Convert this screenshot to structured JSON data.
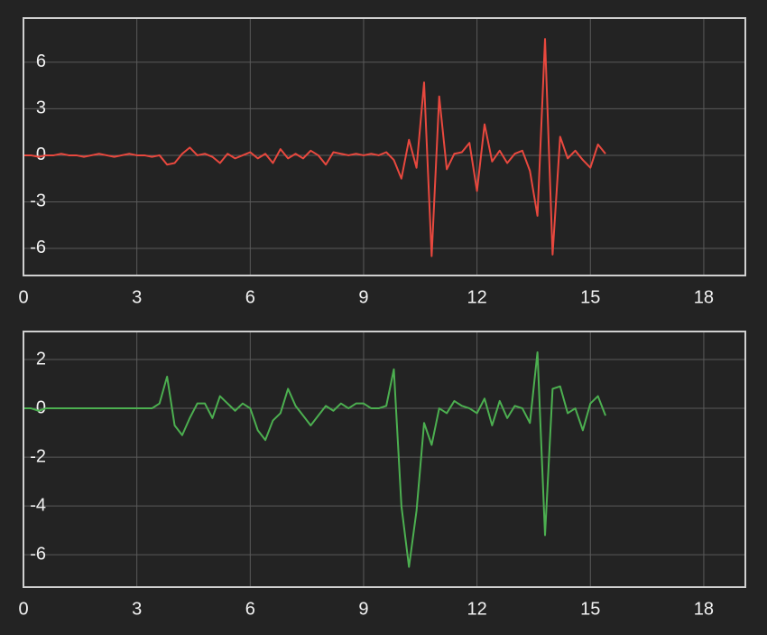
{
  "chart_data": [
    {
      "type": "line",
      "grid": true,
      "x": [
        0,
        0.2,
        0.4,
        0.6,
        0.8,
        1,
        1.2,
        1.4,
        1.6,
        1.8,
        2,
        2.2,
        2.4,
        2.6,
        2.8,
        3,
        3.2,
        3.4,
        3.6,
        3.8,
        4,
        4.2,
        4.4,
        4.6,
        4.8,
        5,
        5.2,
        5.4,
        5.6,
        5.8,
        6,
        6.2,
        6.4,
        6.6,
        6.8,
        7,
        7.2,
        7.4,
        7.6,
        7.8,
        8,
        8.2,
        8.4,
        8.6,
        8.8,
        9,
        9.2,
        9.4,
        9.6,
        9.8,
        10,
        10.2,
        10.4,
        10.6,
        10.8,
        11,
        11.2,
        11.4,
        11.6,
        11.8,
        12,
        12.2,
        12.4,
        12.6,
        12.8,
        13,
        13.2,
        13.4,
        13.6,
        13.8,
        14,
        14.2,
        14.4,
        14.6,
        14.8,
        15,
        15.2,
        15.4
      ],
      "series": [
        {
          "color": "#e8483e",
          "values": [
            0,
            0,
            -0.1,
            0,
            0,
            0.1,
            0,
            0,
            -0.1,
            0,
            0.1,
            0,
            -0.1,
            0,
            0.1,
            0,
            0,
            -0.1,
            0,
            -0.6,
            -0.5,
            0.1,
            0.5,
            0,
            0.1,
            -0.1,
            -0.5,
            0.1,
            -0.2,
            0,
            0.2,
            -0.2,
            0.1,
            -0.5,
            0.4,
            -0.2,
            0.1,
            -0.2,
            0.3,
            0,
            -0.6,
            0.2,
            0.1,
            0,
            0.1,
            0,
            0.1,
            0,
            0.2,
            -0.3,
            -1.5,
            1.0,
            -0.8,
            4.7,
            -6.5,
            3.8,
            -0.9,
            0.1,
            0.2,
            0.8,
            -2.3,
            2.0,
            -0.4,
            0.3,
            -0.5,
            0.1,
            0.3,
            -1.0,
            -3.9,
            7.5,
            -6.4,
            1.2,
            -0.2,
            0.3,
            -0.3,
            -0.8,
            0.7,
            0.1
          ]
        }
      ],
      "xlim": [
        0,
        19.1
      ],
      "xticks": [
        0,
        3,
        6,
        9,
        12,
        15,
        18
      ],
      "ylim": [
        -7.75,
        8.85
      ],
      "yticks": [
        -6,
        -3,
        0,
        3,
        6
      ]
    },
    {
      "type": "line",
      "grid": true,
      "x": [
        0,
        0.2,
        0.4,
        0.6,
        0.8,
        1,
        1.2,
        1.4,
        1.6,
        1.8,
        2,
        2.2,
        2.4,
        2.6,
        2.8,
        3,
        3.2,
        3.4,
        3.6,
        3.8,
        4,
        4.2,
        4.4,
        4.6,
        4.8,
        5,
        5.2,
        5.4,
        5.6,
        5.8,
        6,
        6.2,
        6.4,
        6.6,
        6.8,
        7,
        7.2,
        7.4,
        7.6,
        7.8,
        8,
        8.2,
        8.4,
        8.6,
        8.8,
        9,
        9.2,
        9.4,
        9.6,
        9.8,
        10,
        10.2,
        10.4,
        10.6,
        10.8,
        11,
        11.2,
        11.4,
        11.6,
        11.8,
        12,
        12.2,
        12.4,
        12.6,
        12.8,
        13,
        13.2,
        13.4,
        13.6,
        13.8,
        14,
        14.2,
        14.4,
        14.6,
        14.8,
        15,
        15.2,
        15.4
      ],
      "series": [
        {
          "color": "#4caf50",
          "values": [
            0,
            0,
            -0.1,
            0,
            0,
            0,
            0,
            0,
            0,
            0,
            0,
            0,
            0,
            0,
            0,
            0,
            0,
            0,
            0.2,
            1.3,
            -0.7,
            -1.1,
            -0.4,
            0.2,
            0.2,
            -0.4,
            0.5,
            0.2,
            -0.1,
            0.2,
            0,
            -0.9,
            -1.3,
            -0.5,
            -0.2,
            0.8,
            0.1,
            -0.3,
            -0.7,
            -0.3,
            0.1,
            -0.1,
            0.2,
            0,
            0.2,
            0.2,
            0,
            0,
            0.1,
            1.6,
            -4.0,
            -6.5,
            -4.2,
            -0.6,
            -1.5,
            0,
            -0.2,
            0.3,
            0.1,
            0,
            -0.2,
            0.4,
            -0.7,
            0.3,
            -0.4,
            0.1,
            0,
            -0.6,
            2.3,
            -5.2,
            0.8,
            0.9,
            -0.2,
            0,
            -0.9,
            0.2,
            0.5,
            -0.3
          ]
        }
      ],
      "xlim": [
        0,
        19.1
      ],
      "xticks": [
        0,
        3,
        6,
        9,
        12,
        15,
        18
      ],
      "ylim": [
        -7.33,
        3.15
      ],
      "yticks": [
        -6,
        -4,
        -2,
        0,
        2
      ]
    }
  ]
}
